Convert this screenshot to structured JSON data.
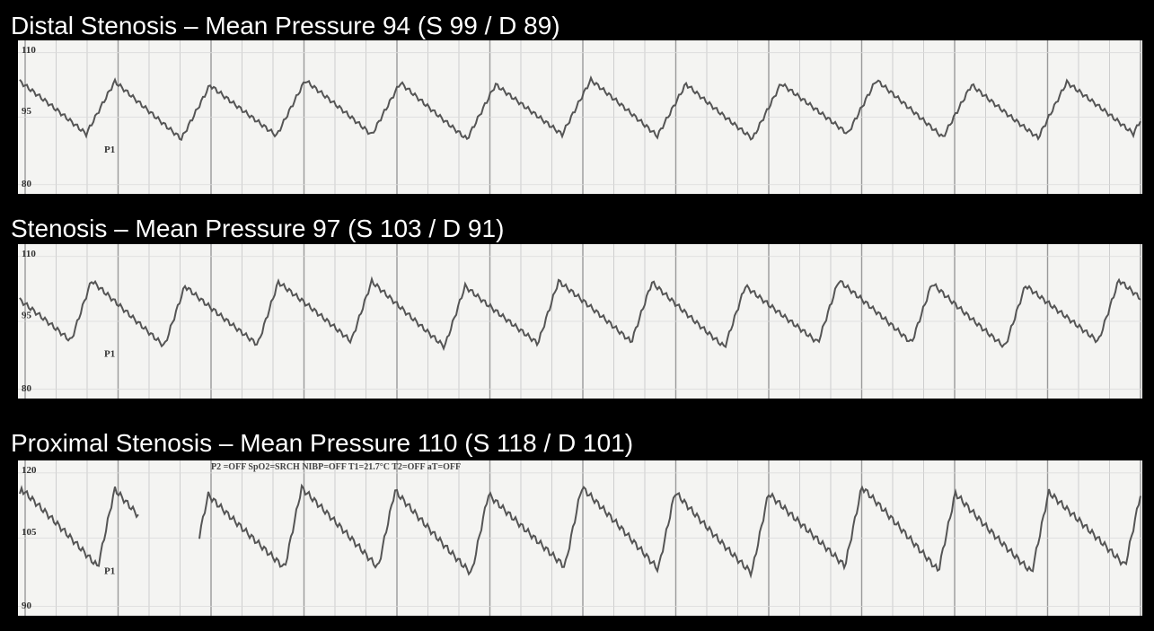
{
  "panels": [
    {
      "title": "Distal Stenosis – Mean Pressure 94 (S 99 / D 89)",
      "scale_top": "110",
      "scale_mid": "95",
      "scale_bottom": "80",
      "channel": "P1"
    },
    {
      "title": "Stenosis – Mean Pressure 97 (S 103 / D 91)",
      "scale_top": "110",
      "scale_mid": "95",
      "scale_bottom": "80",
      "channel": "P1"
    },
    {
      "title": "Proximal Stenosis – Mean Pressure 110 (S 118 / D 101)",
      "scale_top": "120",
      "scale_mid": "105",
      "scale_bottom": "90",
      "channel": "P1",
      "header": "P2 =OFF   SpO2=SRCH   NIBP=OFF   T1=21.7°C   T2=OFF   aT=OFF"
    }
  ]
}
